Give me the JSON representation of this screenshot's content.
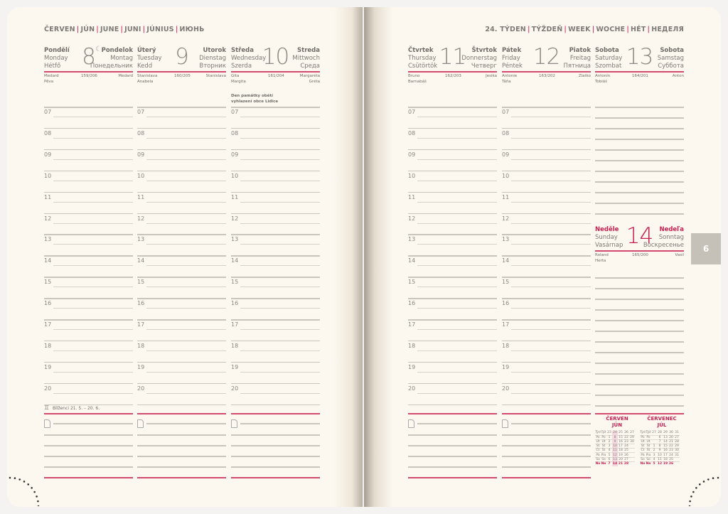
{
  "left_header": [
    "ČERVEN",
    "JÚN",
    "JUNE",
    "JUNI",
    "JÚNIUS",
    "ИЮНЬ"
  ],
  "right_header": [
    "24. TÝDEN",
    "TÝŽDEŇ",
    "WEEK",
    "WOCHE",
    "HÉT",
    "НЕДЕЛЯ"
  ],
  "hours": [
    "07",
    "08",
    "09",
    "10",
    "11",
    "12",
    "13",
    "14",
    "15",
    "16",
    "17",
    "18",
    "19",
    "20"
  ],
  "days": [
    {
      "num": "8",
      "cz": "Pondělí",
      "en": "Monday",
      "hu": "Hétfő",
      "sk": "Pondelok",
      "de": "Montag",
      "ru": "Понедельник",
      "day_of_year": "159/206",
      "names_left": [
        "Medard",
        "Pěva"
      ],
      "names_right": [
        "Medard"
      ],
      "icon": "moon-icon"
    },
    {
      "num": "9",
      "cz": "Úterý",
      "en": "Tuesday",
      "hu": "Kedd",
      "sk": "Utorok",
      "de": "Dienstag",
      "ru": "Вторник",
      "day_of_year": "160/205",
      "names_left": [
        "Stanislava",
        "Anabela"
      ],
      "names_right": [
        "Stanislava"
      ]
    },
    {
      "num": "10",
      "cz": "Středa",
      "en": "Wednesday",
      "hu": "Szerda",
      "sk": "Streda",
      "de": "Mittwoch",
      "ru": "Среда",
      "day_of_year": "161/204",
      "names_left": [
        "Gita",
        "Margita"
      ],
      "names_right": [
        "Margaréta",
        "Gréta"
      ],
      "note": "Den památky obětí vyhlazení obce Lidice"
    },
    {
      "num": "11",
      "cz": "Čtvrtek",
      "en": "Thursday",
      "hu": "Csütörtök",
      "sk": "Štvrtok",
      "de": "Donnerstag",
      "ru": "Четверг",
      "day_of_year": "162/203",
      "names_left": [
        "Bruno",
        "Barnabáš"
      ],
      "names_right": [
        "Jesika"
      ]
    },
    {
      "num": "12",
      "cz": "Pátek",
      "en": "Friday",
      "hu": "Péntek",
      "sk": "Piatok",
      "de": "Freitag",
      "ru": "Пятница",
      "day_of_year": "163/202",
      "names_left": [
        "Antonie",
        "Táňa"
      ],
      "names_right": [
        "Zlatko"
      ]
    },
    {
      "num": "13",
      "cz": "Sobota",
      "en": "Saturday",
      "hu": "Szombat",
      "sk": "Sobota",
      "de": "Samstag",
      "ru": "Суббота",
      "day_of_year": "164/201",
      "names_left": [
        "Antonín",
        "Tobiáš"
      ],
      "names_right": [
        "Anton"
      ]
    },
    {
      "num": "14",
      "cz": "Neděle",
      "en": "Sunday",
      "hu": "Vasárnap",
      "sk": "Nedeľa",
      "de": "Sonntag",
      "ru": "Воскресенье",
      "day_of_year": "165/200",
      "names_left": [
        "Roland",
        "Herta"
      ],
      "names_right": [
        "Vasil"
      ],
      "sunday": true
    }
  ],
  "zodiac": {
    "icon": "gemini-icon",
    "text": "Blíženci 21. 5. – 20. 6."
  },
  "notes_icon": "note-icon",
  "month_tab": "6",
  "colors": {
    "accent": "#c81f52",
    "paper": "#fcf8f0",
    "tab": "#c5c0b8"
  },
  "mini_calendars": [
    {
      "title": [
        "ČERVEN",
        "JÚN"
      ],
      "weeks": [
        "23",
        "24",
        "25",
        "26",
        "27"
      ],
      "highlight_week": "24",
      "rows": [
        [
          "Po",
          "Po",
          "1",
          "8",
          "15",
          "22",
          "29"
        ],
        [
          "Út",
          "Ut",
          "2",
          "9",
          "16",
          "23",
          "30"
        ],
        [
          "St",
          "St",
          "3",
          "10",
          "17",
          "24",
          ""
        ],
        [
          "Čt",
          "Št",
          "4",
          "11",
          "18",
          "25",
          ""
        ],
        [
          "Pá",
          "Pia",
          "5",
          "12",
          "19",
          "26",
          ""
        ],
        [
          "So",
          "So",
          "6",
          "13",
          "20",
          "27",
          ""
        ],
        [
          "Ne",
          "Ne",
          "7",
          "14",
          "21",
          "28",
          ""
        ]
      ]
    },
    {
      "title": [
        "ČERVENEC",
        "JÚL"
      ],
      "weeks": [
        "27",
        "28",
        "29",
        "30",
        "31"
      ],
      "rows": [
        [
          "Po",
          "Po",
          "",
          "6",
          "13",
          "20",
          "27"
        ],
        [
          "Út",
          "Ut",
          "",
          "7",
          "14",
          "21",
          "28"
        ],
        [
          "St",
          "St",
          "1",
          "8",
          "15",
          "22",
          "29"
        ],
        [
          "Čt",
          "Št",
          "2",
          "9",
          "16",
          "23",
          "30"
        ],
        [
          "Pá",
          "Pia",
          "3",
          "10",
          "17",
          "24",
          "31"
        ],
        [
          "So",
          "So",
          "4",
          "11",
          "18",
          "25",
          ""
        ],
        [
          "Ne",
          "Ne",
          "5",
          "12",
          "19",
          "26",
          ""
        ]
      ]
    }
  ],
  "week_header_label": [
    "Týd",
    "Týž"
  ]
}
